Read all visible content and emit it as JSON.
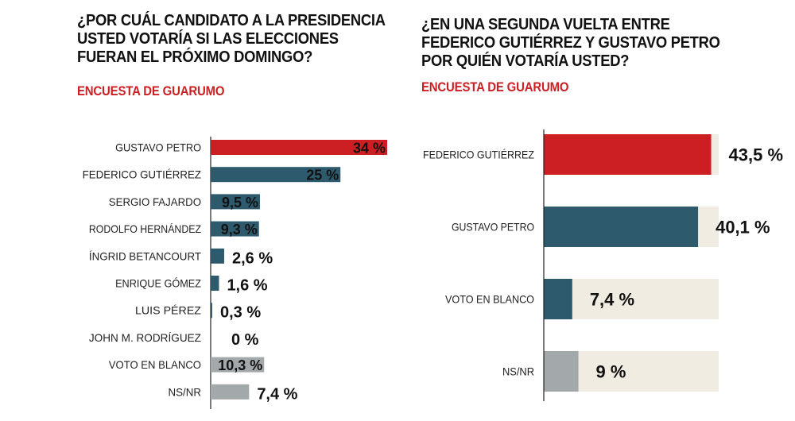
{
  "chart_data": [
    {
      "type": "bar",
      "orientation": "horizontal",
      "title": "¿POR CUÁL CANDIDATO A LA PRESIDENCIA USTED VOTARÍA SI LAS ELECCIONES FUERAN EL PRÓXIMO DOMINGO?",
      "subtitle": "ENCUESTA DE GUARUMO",
      "categories": [
        "GUSTAVO PETRO",
        "FEDERICO GUTIÉRREZ",
        "SERGIO FAJARDO",
        "RODOLFO HERNÁNDEZ",
        "ÍNGRID BETANCOURT",
        "ENRIQUE GÓMEZ",
        "LUIS PÉREZ",
        "JOHN M. RODRÍGUEZ",
        "VOTO EN BLANCO",
        "NS/NR"
      ],
      "values": [
        34,
        25,
        9.5,
        9.3,
        2.6,
        1.6,
        0.3,
        0,
        10.3,
        7.4
      ],
      "value_labels": [
        "34 %",
        "25 %",
        "9,5 %",
        "9,3 %",
        "2,6 %",
        "1,6 %",
        "0,3 %",
        "0 %",
        "10,3 %",
        "7,4 %"
      ],
      "colors": [
        "#cc1f24",
        "#2e5a6e",
        "#2e5a6e",
        "#2e5a6e",
        "#2e5a6e",
        "#2e5a6e",
        "#2e5a6e",
        "#2e5a6e",
        "#a3a8aa",
        "#a3a8aa"
      ],
      "xlim": [
        0,
        34
      ],
      "grid": false,
      "legend": "none"
    },
    {
      "type": "bar",
      "orientation": "horizontal",
      "title": "¿EN UNA SEGUNDA VUELTA ENTRE FEDERICO GUTIÉRREZ Y GUSTAVO PETRO POR QUIÉN VOTARÍA USTED?",
      "subtitle": "ENCUESTA DE GUARUMO",
      "categories": [
        "FEDERICO GUTIÉRREZ",
        "GUSTAVO PETRO",
        "VOTO EN BLANCO",
        "NS/NR"
      ],
      "values": [
        43.5,
        40.1,
        7.4,
        9
      ],
      "value_labels": [
        "43,5 %",
        "40,1 %",
        "7,4 %",
        "9 %"
      ],
      "colors": [
        "#cc1f24",
        "#2e5a6e",
        "#2e5a6e",
        "#a3a8aa"
      ],
      "track_color": "#f1ece1",
      "xlim": [
        0,
        100
      ],
      "grid": false,
      "legend": "none"
    }
  ]
}
